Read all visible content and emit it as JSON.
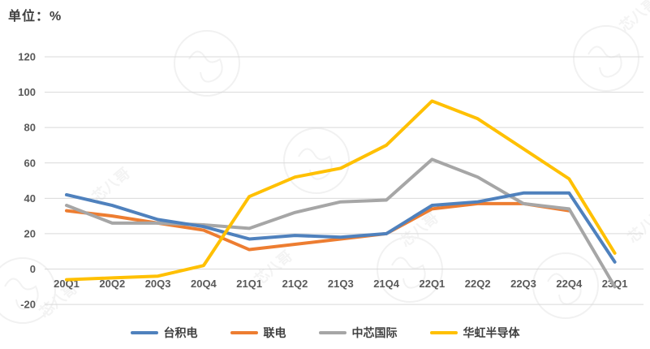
{
  "title": "单位：%",
  "watermark": {
    "text": "芯八哥"
  },
  "chart_data": {
    "type": "line",
    "title": "单位：%",
    "xlabel": "",
    "ylabel": "",
    "categories": [
      "20Q1",
      "20Q2",
      "20Q3",
      "20Q4",
      "21Q1",
      "21Q2",
      "21Q3",
      "21Q4",
      "22Q1",
      "22Q2",
      "22Q3",
      "22Q4",
      "23Q1"
    ],
    "series": [
      {
        "name": "台积电",
        "color": "#4f81bd",
        "values": [
          42,
          36,
          28,
          24,
          17,
          19,
          18,
          20,
          36,
          38,
          43,
          43,
          4
        ]
      },
      {
        "name": "联电",
        "color": "#ed7d31",
        "values": [
          33,
          30,
          26,
          22,
          11,
          14,
          17,
          20,
          34,
          37,
          37,
          33,
          null
        ]
      },
      {
        "name": "中芯国际",
        "color": "#a6a6a6",
        "values": [
          36,
          26,
          26,
          25,
          23,
          32,
          38,
          39,
          62,
          52,
          37,
          34,
          -10
        ]
      },
      {
        "name": "华虹半导体",
        "color": "#ffc000",
        "values": [
          -6,
          -5,
          -4,
          2,
          41,
          52,
          57,
          70,
          95,
          85,
          68,
          51,
          9
        ]
      }
    ],
    "ylim": [
      -20,
      120
    ],
    "ytick_step": 20,
    "yticks": [
      120,
      100,
      80,
      60,
      40,
      20,
      0,
      -20
    ],
    "grid": true,
    "legend_position": "bottom"
  }
}
